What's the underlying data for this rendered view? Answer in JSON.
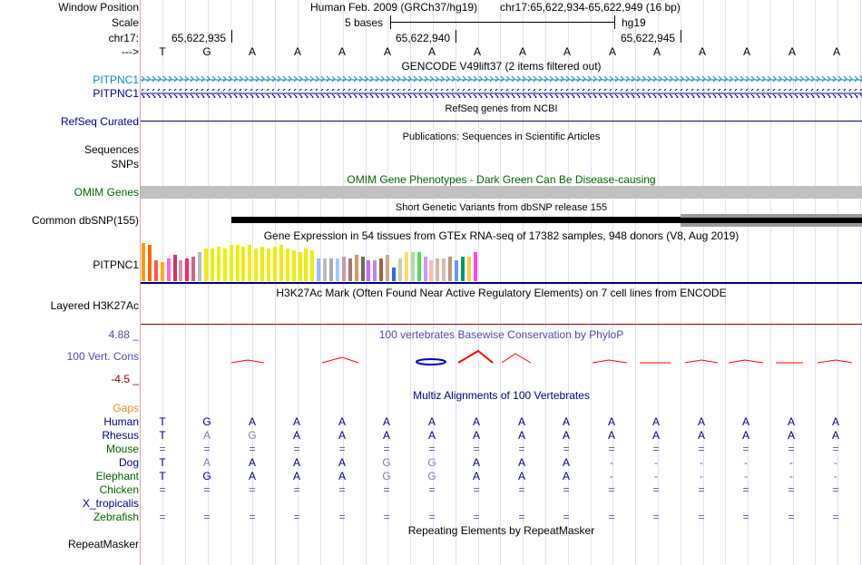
{
  "header": {
    "window_position_label": "Window Position",
    "assembly": "Human Feb. 2009 (GRCh37/hg19)",
    "position": "chr17:65,622,934-65,622,949 (16 bp)",
    "scale_label": "Scale",
    "scale_text": "5 bases",
    "scale_assembly": "hg19",
    "chrom_label": "chr17:",
    "coords": [
      "65,622,935",
      "65,622,940",
      "65,622,945"
    ],
    "strand_label": "--->"
  },
  "ruler_bases": [
    "T",
    "G",
    "A",
    "A",
    "A",
    "A",
    "A",
    "A",
    "A",
    "A",
    "A",
    "A",
    "A",
    "A",
    "A",
    "A"
  ],
  "tracks": {
    "gencode": {
      "title": "GENCODE V49lift37 (2 items filtered out)",
      "items": [
        "PITPNC1",
        "PITPNC1"
      ]
    },
    "refseq": {
      "title": "RefSeq genes from NCBI",
      "label": "RefSeq Curated"
    },
    "publications": {
      "title": "Publications: Sequences in Scientific Articles",
      "labels": [
        "Sequences",
        "SNPs"
      ]
    },
    "omim": {
      "title": "OMIM Gene Phenotypes - Dark Green Can Be Disease-causing",
      "label": "OMIM Genes"
    },
    "dbsnp": {
      "title": "Short Genetic Variants from dbSNP release 155",
      "label": "Common dbSNP(155)"
    },
    "gtex": {
      "title": "Gene Expression in 54 tissues from GTEx RNA-seq of 17382 samples, 948 donors (V8, Aug 2019)",
      "label": "PITPNC1"
    },
    "h3k27ac": {
      "title": "H3K27Ac Mark (Often Found Near Active Regulatory Elements) on 7 cell lines from ENCODE",
      "label": "Layered H3K27Ac"
    },
    "phylop": {
      "title": "100 vertebrates Basewise Conservation by PhyloP",
      "label": "100 Vert. Cons",
      "max": "4.88 _",
      "min": "-4.5 _"
    },
    "multiz": {
      "title": "Multiz Alignments of 100 Vertebrates",
      "gaps_label": "Gaps"
    },
    "repeatmasker": {
      "title": "Repeating Elements by RepeatMasker",
      "label": "RepeatMasker"
    }
  },
  "gtex_colors": [
    "#ff9900",
    "#ff6600",
    "#ff5555",
    "#ffaa00",
    "#ff66cc",
    "#cc3366",
    "#cc9999",
    "#ff2266",
    "#cc6688",
    "#bbbbbb",
    "#eeee00",
    "#eeee00",
    "#eeee00",
    "#eeee00",
    "#eeee00",
    "#eeee00",
    "#eeee00",
    "#eeee00",
    "#eeee00",
    "#eeee00",
    "#eeee00",
    "#eeee00",
    "#eeee00",
    "#eeee00",
    "#eeee00",
    "#eeee00",
    "#eeee00",
    "#eeee00",
    "#99bbff",
    "#bbbbbb",
    "#aaaaaa",
    "#99ccff",
    "#cc99aa",
    "#aa7766",
    "#cc9966",
    "#776655",
    "#cc66ff",
    "#bb88ee",
    "#996644",
    "#ccaa88",
    "#3366ff",
    "#ccccaa",
    "#ffdd66",
    "#aaddaa",
    "#55dd55",
    "#cc99ff",
    "#ffbbaa",
    "#ccbbaa",
    "#ddbbaa",
    "#bb9977",
    "#6699ff",
    "#009966",
    "#ffcc33",
    "#ff44ee"
  ],
  "gtex_values": [
    1.0,
    0.95,
    0.55,
    0.5,
    0.6,
    0.7,
    0.55,
    0.6,
    0.65,
    0.75,
    0.85,
    0.85,
    0.9,
    0.85,
    0.95,
    0.95,
    0.9,
    0.95,
    0.85,
    0.9,
    0.85,
    0.9,
    0.95,
    0.85,
    0.8,
    0.75,
    0.85,
    0.8,
    0.6,
    0.6,
    0.6,
    0.6,
    0.65,
    0.6,
    0.7,
    0.65,
    0.55,
    0.55,
    0.6,
    0.7,
    0.35,
    0.6,
    0.75,
    0.75,
    0.75,
    0.65,
    0.55,
    0.6,
    0.6,
    0.65,
    0.55,
    0.65,
    0.65,
    0.75
  ],
  "multiz": {
    "species": [
      {
        "name": "Human",
        "color": "#000080",
        "bases": [
          "T",
          "G",
          "A",
          "A",
          "A",
          "A",
          "A",
          "A",
          "A",
          "A",
          "A",
          "A",
          "A",
          "A",
          "A",
          "A"
        ]
      },
      {
        "name": "Rhesus",
        "color": "#000080",
        "bases": [
          "T",
          "A",
          "G",
          "A",
          "A",
          "A",
          "A",
          "A",
          "A",
          "A",
          "A",
          "A",
          "A",
          "A",
          "A",
          "A"
        ]
      },
      {
        "name": "Mouse",
        "color": "#006400",
        "bases": [
          "=",
          "=",
          "=",
          "=",
          "=",
          "=",
          "=",
          "=",
          "=",
          "=",
          "=",
          "=",
          "=",
          "=",
          "=",
          "="
        ]
      },
      {
        "name": "Dog",
        "color": "#000080",
        "bases": [
          "T",
          "A",
          "A",
          "A",
          "A",
          "G",
          "G",
          "A",
          "A",
          "A",
          "-",
          "-",
          "-",
          "-",
          "-",
          "-"
        ]
      },
      {
        "name": "Elephant",
        "color": "#006400",
        "bases": [
          "T",
          "G",
          "A",
          "A",
          "A",
          "G",
          "G",
          "A",
          "A",
          "A",
          "-",
          "-",
          "-",
          "-",
          "-",
          "-"
        ]
      },
      {
        "name": "Chicken",
        "color": "#006400",
        "bases": [
          "=",
          "=",
          "=",
          "=",
          "=",
          "=",
          "=",
          "=",
          "=",
          "=",
          "=",
          "=",
          "=",
          "=",
          "=",
          "="
        ]
      },
      {
        "name": "X_tropicalis",
        "color": "#000080",
        "bases": [
          "",
          "",
          "",
          "",
          "",
          "",
          "",
          "",
          "",
          "",
          "",
          "",
          "",
          "",
          "",
          ""
        ]
      },
      {
        "name": "Zebrafish",
        "color": "#006400",
        "bases": [
          "=",
          "=",
          "=",
          "=",
          "=",
          "=",
          "=",
          "=",
          "=",
          "=",
          "=",
          "=",
          "=",
          "=",
          "=",
          "="
        ]
      }
    ]
  },
  "colors": {
    "gencode_blue": "#0b8bb4",
    "navy": "#000080",
    "omim_green": "#006400",
    "conservation_purple": "#4b4ba6",
    "h3k27ac_line": "#8b0000",
    "gaps_orange": "#e0902a"
  }
}
